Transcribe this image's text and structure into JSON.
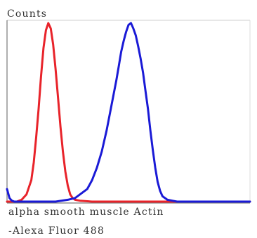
{
  "chart_data": {
    "type": "line",
    "title": "",
    "ylabel": "Counts",
    "xlabel_line1": "alpha smooth muscle Actin",
    "xlabel_line2": "-Alexa Fluor 488",
    "grid": false,
    "legend": "none",
    "xlim": [
      0,
      100
    ],
    "ylim": [
      0,
      100
    ],
    "series": [
      {
        "color": "#e8232a",
        "x": [
          0,
          4,
          6,
          8,
          10,
          11,
          12,
          13,
          14,
          15,
          16,
          17,
          18,
          19,
          20,
          21,
          22,
          23,
          24,
          25,
          26,
          27,
          28,
          30,
          35,
          40,
          100
        ],
        "y": [
          0,
          0,
          1,
          4,
          12,
          22,
          36,
          52,
          70,
          86,
          96,
          100,
          97,
          88,
          74,
          58,
          42,
          28,
          17,
          9,
          4,
          2,
          1,
          0.5,
          0,
          0,
          0
        ]
      },
      {
        "color": "#1a1ad6",
        "x": [
          0,
          1,
          2,
          3,
          4,
          20,
          25,
          28,
          30,
          33,
          35,
          37,
          39,
          41,
          43,
          45,
          46,
          47,
          48,
          49,
          50,
          51,
          52,
          53,
          54,
          55,
          56,
          57,
          58,
          59,
          60,
          61,
          62,
          63,
          64,
          66,
          68,
          70,
          100
        ],
        "y": [
          7,
          2,
          0.5,
          0,
          0,
          0,
          1,
          2,
          4,
          7,
          12,
          19,
          28,
          40,
          54,
          68,
          76,
          84,
          90,
          95,
          99,
          100,
          97,
          93,
          87,
          80,
          72,
          62,
          52,
          40,
          29,
          19,
          11,
          6,
          3,
          1,
          0.5,
          0,
          0
        ]
      }
    ]
  }
}
